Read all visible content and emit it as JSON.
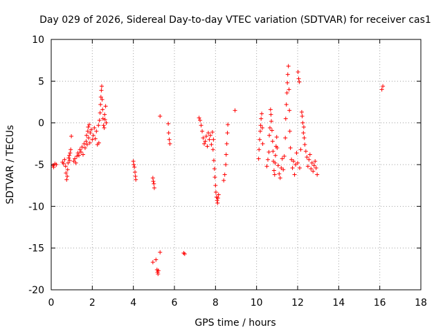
{
  "chart_data": {
    "type": "scatter",
    "title": "Day 029 of 2026, Sidereal Day-to-day VTEC variation (SDTVAR) for receiver cas1",
    "xlabel": "GPS time / hours",
    "ylabel": "SDTVAR / TECUs",
    "xlim": [
      0,
      18
    ],
    "ylim": [
      -20,
      10
    ],
    "xticks": [
      0,
      2,
      4,
      6,
      8,
      10,
      12,
      14,
      16,
      18
    ],
    "yticks": [
      -20,
      -15,
      -10,
      -5,
      0,
      5,
      10
    ],
    "grid": true,
    "marker": "+",
    "color": "#ff0000",
    "series": [
      {
        "name": "SDTVAR",
        "points": [
          [
            0.08,
            -5.1
          ],
          [
            0.12,
            -5.3
          ],
          [
            0.18,
            -4.9
          ],
          [
            0.25,
            -5.0
          ],
          [
            0.55,
            -4.7
          ],
          [
            0.6,
            -4.9
          ],
          [
            0.65,
            -4.4
          ],
          [
            0.7,
            -5.2
          ],
          [
            0.72,
            -6.0
          ],
          [
            0.75,
            -6.8
          ],
          [
            0.78,
            -6.4
          ],
          [
            0.8,
            -5.6
          ],
          [
            0.82,
            -4.8
          ],
          [
            0.85,
            -4.2
          ],
          [
            0.88,
            -3.9
          ],
          [
            0.9,
            -4.5
          ],
          [
            0.92,
            -3.6
          ],
          [
            0.95,
            -3.2
          ],
          [
            0.98,
            -1.6
          ],
          [
            1.1,
            -4.6
          ],
          [
            1.15,
            -4.3
          ],
          [
            1.2,
            -4.8
          ],
          [
            1.25,
            -4.0
          ],
          [
            1.3,
            -3.6
          ],
          [
            1.35,
            -3.9
          ],
          [
            1.4,
            -3.2
          ],
          [
            1.45,
            -3.5
          ],
          [
            1.5,
            -2.9
          ],
          [
            1.55,
            -3.8
          ],
          [
            1.6,
            -2.5
          ],
          [
            1.65,
            -3.0
          ],
          [
            1.7,
            -2.2
          ],
          [
            1.72,
            -1.5
          ],
          [
            1.75,
            -2.6
          ],
          [
            1.78,
            -1.0
          ],
          [
            1.8,
            -0.5
          ],
          [
            1.82,
            -1.8
          ],
          [
            1.85,
            -0.2
          ],
          [
            1.88,
            -2.4
          ],
          [
            1.9,
            -1.2
          ],
          [
            1.95,
            -0.8
          ],
          [
            2.0,
            -2.0
          ],
          [
            2.05,
            -1.5
          ],
          [
            2.1,
            -0.6
          ],
          [
            2.15,
            -1.9
          ],
          [
            2.2,
            -1.0
          ],
          [
            2.25,
            -2.6
          ],
          [
            2.3,
            -0.3
          ],
          [
            2.32,
            -2.4
          ],
          [
            2.35,
            0.3
          ],
          [
            2.38,
            1.2
          ],
          [
            2.4,
            2.2
          ],
          [
            2.42,
            3.1
          ],
          [
            2.44,
            3.9
          ],
          [
            2.46,
            4.4
          ],
          [
            2.48,
            2.8
          ],
          [
            2.5,
            1.6
          ],
          [
            2.52,
            0.5
          ],
          [
            2.55,
            -0.3
          ],
          [
            2.58,
            -0.6
          ],
          [
            2.6,
            1.0
          ],
          [
            2.62,
            0.4
          ],
          [
            2.65,
            2.0
          ],
          [
            2.68,
            0.0
          ],
          [
            4.0,
            -4.6
          ],
          [
            4.02,
            -5.0
          ],
          [
            4.05,
            -5.3
          ],
          [
            4.08,
            -5.9
          ],
          [
            4.1,
            -6.4
          ],
          [
            4.12,
            -6.8
          ],
          [
            4.95,
            -6.6
          ],
          [
            4.97,
            -7.0
          ],
          [
            5.0,
            -7.3
          ],
          [
            5.02,
            -7.8
          ],
          [
            4.95,
            -16.7
          ],
          [
            5.1,
            -16.4
          ],
          [
            5.15,
            -17.6
          ],
          [
            5.18,
            -17.9
          ],
          [
            5.2,
            -18.1
          ],
          [
            5.22,
            -17.7
          ],
          [
            5.3,
            -15.5
          ],
          [
            5.3,
            0.8
          ],
          [
            5.7,
            -0.1
          ],
          [
            5.72,
            -1.2
          ],
          [
            5.75,
            -2.0
          ],
          [
            5.78,
            -2.5
          ],
          [
            6.45,
            -15.6
          ],
          [
            6.5,
            -15.7
          ],
          [
            7.2,
            0.6
          ],
          [
            7.25,
            0.3
          ],
          [
            7.3,
            -0.3
          ],
          [
            7.35,
            -1.0
          ],
          [
            7.4,
            -1.8
          ],
          [
            7.45,
            -2.5
          ],
          [
            7.5,
            -2.2
          ],
          [
            7.55,
            -1.6
          ],
          [
            7.6,
            -2.8
          ],
          [
            7.65,
            -1.2
          ],
          [
            7.7,
            -2.0
          ],
          [
            7.75,
            -1.5
          ],
          [
            7.8,
            -2.6
          ],
          [
            7.85,
            -1.1
          ],
          [
            7.88,
            -3.2
          ],
          [
            7.9,
            -2.0
          ],
          [
            7.92,
            -4.5
          ],
          [
            7.95,
            -5.5
          ],
          [
            7.97,
            -6.5
          ],
          [
            8.0,
            -7.5
          ],
          [
            8.02,
            -8.3
          ],
          [
            8.05,
            -8.9
          ],
          [
            8.08,
            -9.3
          ],
          [
            8.1,
            -9.6
          ],
          [
            8.12,
            -9.0
          ],
          [
            8.15,
            -8.6
          ],
          [
            8.4,
            -6.9
          ],
          [
            8.45,
            -6.2
          ],
          [
            8.5,
            -5.0
          ],
          [
            8.52,
            -3.8
          ],
          [
            8.55,
            -2.5
          ],
          [
            8.58,
            -1.2
          ],
          [
            8.6,
            -0.2
          ],
          [
            8.95,
            1.5
          ],
          [
            10.1,
            -4.3
          ],
          [
            10.12,
            -3.2
          ],
          [
            10.15,
            -2.0
          ],
          [
            10.18,
            -1.0
          ],
          [
            10.2,
            -0.3
          ],
          [
            10.22,
            0.5
          ],
          [
            10.25,
            1.1
          ],
          [
            10.28,
            -0.6
          ],
          [
            10.3,
            -2.5
          ],
          [
            10.5,
            -5.2
          ],
          [
            10.55,
            -4.4
          ],
          [
            10.6,
            -3.5
          ],
          [
            10.62,
            -1.5
          ],
          [
            10.65,
            -0.6
          ],
          [
            10.68,
            1.6
          ],
          [
            10.7,
            1.0
          ],
          [
            10.72,
            0.2
          ],
          [
            10.75,
            -0.9
          ],
          [
            10.78,
            -2.2
          ],
          [
            10.8,
            -3.4
          ],
          [
            10.82,
            -4.6
          ],
          [
            10.85,
            -5.7
          ],
          [
            10.88,
            -6.2
          ],
          [
            10.9,
            -4.8
          ],
          [
            10.92,
            -3.9
          ],
          [
            10.95,
            -2.8
          ],
          [
            10.98,
            -1.7
          ],
          [
            11.0,
            -3.0
          ],
          [
            11.05,
            -5.1
          ],
          [
            11.1,
            -6.1
          ],
          [
            11.15,
            -6.6
          ],
          [
            11.2,
            -5.4
          ],
          [
            11.25,
            -4.3
          ],
          [
            11.3,
            -5.6
          ],
          [
            11.35,
            -4.0
          ],
          [
            11.4,
            -1.8
          ],
          [
            11.42,
            0.5
          ],
          [
            11.45,
            2.2
          ],
          [
            11.48,
            3.6
          ],
          [
            11.5,
            4.8
          ],
          [
            11.52,
            5.8
          ],
          [
            11.55,
            6.8
          ],
          [
            11.58,
            4.0
          ],
          [
            11.6,
            1.5
          ],
          [
            11.62,
            -1.0
          ],
          [
            11.65,
            -3.0
          ],
          [
            11.7,
            -4.4
          ],
          [
            11.75,
            -5.4
          ],
          [
            11.8,
            -4.6
          ],
          [
            11.85,
            -6.2
          ],
          [
            11.9,
            -5.0
          ],
          [
            11.95,
            -3.6
          ],
          [
            12.0,
            -4.8
          ],
          [
            12.02,
            6.1
          ],
          [
            12.05,
            5.3
          ],
          [
            12.08,
            4.9
          ],
          [
            12.1,
            -5.4
          ],
          [
            12.15,
            -3.2
          ],
          [
            12.2,
            1.3
          ],
          [
            12.22,
            0.8
          ],
          [
            12.25,
            0.0
          ],
          [
            12.28,
            -1.2
          ],
          [
            12.3,
            -0.5
          ],
          [
            12.32,
            -1.8
          ],
          [
            12.35,
            -2.6
          ],
          [
            12.4,
            -3.4
          ],
          [
            12.45,
            -4.1
          ],
          [
            12.5,
            -5.2
          ],
          [
            12.55,
            -4.4
          ],
          [
            12.6,
            -3.8
          ],
          [
            12.65,
            -5.5
          ],
          [
            12.7,
            -4.8
          ],
          [
            12.75,
            -5.8
          ],
          [
            12.8,
            -5.1
          ],
          [
            12.85,
            -4.6
          ],
          [
            12.9,
            -5.4
          ],
          [
            12.95,
            -6.2
          ],
          [
            16.1,
            4.0
          ],
          [
            16.15,
            4.4
          ]
        ]
      }
    ]
  }
}
